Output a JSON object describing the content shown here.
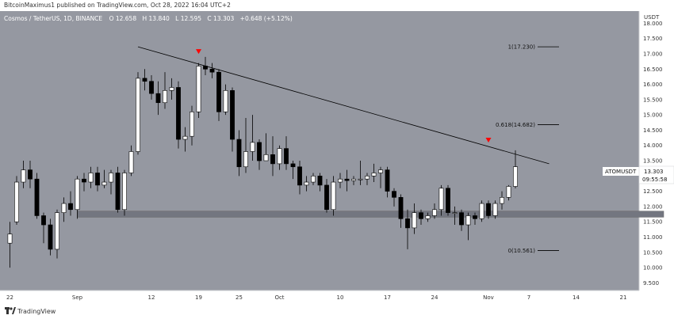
{
  "header": {
    "attribution": "BitcoinMaximus1 published on TradingView.com, Oct 28, 2022 16:04 UTC+2"
  },
  "footer": {
    "brand": "TradingView"
  },
  "chart_data": {
    "type": "candlestick",
    "title": "Cosmos / TetherUS, 1D, BINANCE",
    "legend": {
      "pair": "Cosmos / TetherUS, 1D, BINANCE",
      "ohlc": [
        {
          "label": "O",
          "value": "12.658"
        },
        {
          "label": "H",
          "value": "13.840"
        },
        {
          "label": "L",
          "value": "12.595"
        },
        {
          "label": "C",
          "value": "13.303"
        }
      ],
      "change": "+0.648 (+5.12%)"
    },
    "y_axis": {
      "unit": "USDT",
      "range": [
        9.25,
        18.4
      ],
      "ticks": [
        "9.500",
        "10.000",
        "10.500",
        "11.000",
        "11.500",
        "12.000",
        "12.500",
        "13.000",
        "13.500",
        "14.000",
        "14.500",
        "15.000",
        "15.500",
        "16.000",
        "16.500",
        "17.000",
        "17.500",
        "18.000"
      ]
    },
    "x_axis": {
      "ticks": [
        {
          "label": "22",
          "day": 0
        },
        {
          "label": "Sep",
          "day": 10
        },
        {
          "label": "12",
          "day": 21
        },
        {
          "label": "19",
          "day": 28
        },
        {
          "label": "25",
          "day": 34
        },
        {
          "label": "Oct",
          "day": 40
        },
        {
          "label": "10",
          "day": 49
        },
        {
          "label": "17",
          "day": 56
        },
        {
          "label": "24",
          "day": 63
        },
        {
          "label": "Nov",
          "day": 71
        },
        {
          "label": "7",
          "day": 77
        },
        {
          "label": "14",
          "day": 84
        },
        {
          "label": "21",
          "day": 91
        }
      ]
    },
    "candles": [
      [
        10.8,
        11.1,
        10.0,
        11.5
      ],
      [
        11.5,
        12.8,
        11.4,
        13.0
      ],
      [
        12.8,
        13.2,
        12.6,
        13.5
      ],
      [
        13.2,
        12.9,
        12.6,
        13.5
      ],
      [
        12.9,
        11.7,
        11.6,
        13.1
      ],
      [
        11.7,
        11.4,
        10.8,
        11.8
      ],
      [
        11.4,
        10.6,
        10.4,
        11.6
      ],
      [
        10.6,
        11.8,
        10.3,
        11.9
      ],
      [
        11.8,
        12.1,
        11.5,
        12.3
      ],
      [
        12.1,
        11.9,
        11.7,
        12.5
      ],
      [
        11.9,
        12.9,
        11.6,
        13.0
      ],
      [
        12.9,
        12.8,
        12.5,
        13.1
      ],
      [
        12.8,
        13.1,
        12.6,
        13.3
      ],
      [
        13.1,
        12.7,
        12.5,
        13.3
      ],
      [
        12.7,
        12.8,
        12.6,
        13.2
      ],
      [
        12.8,
        13.1,
        12.4,
        13.2
      ],
      [
        13.1,
        11.9,
        11.8,
        13.3
      ],
      [
        11.9,
        13.1,
        11.7,
        13.2
      ],
      [
        13.1,
        13.8,
        13.0,
        14.0
      ],
      [
        13.8,
        16.2,
        13.7,
        16.4
      ],
      [
        16.2,
        16.1,
        15.8,
        16.5
      ],
      [
        16.1,
        15.7,
        15.5,
        16.3
      ],
      [
        15.7,
        15.4,
        15.0,
        16.1
      ],
      [
        15.4,
        15.8,
        15.2,
        16.4
      ],
      [
        15.8,
        15.9,
        15.5,
        16.2
      ],
      [
        15.9,
        14.2,
        13.9,
        16.1
      ],
      [
        14.2,
        14.3,
        13.8,
        14.6
      ],
      [
        14.3,
        15.1,
        14.0,
        15.3
      ],
      [
        15.1,
        16.6,
        14.9,
        16.7
      ],
      [
        16.6,
        16.5,
        16.3,
        16.9
      ],
      [
        16.5,
        16.4,
        16.2,
        16.7
      ],
      [
        16.4,
        15.1,
        14.8,
        16.5
      ],
      [
        15.1,
        15.8,
        15.0,
        16.0
      ],
      [
        15.8,
        14.2,
        13.8,
        15.9
      ],
      [
        14.2,
        13.3,
        13.0,
        14.5
      ],
      [
        13.3,
        13.8,
        13.1,
        14.9
      ],
      [
        13.8,
        14.1,
        13.5,
        15.0
      ],
      [
        14.1,
        13.5,
        13.2,
        14.2
      ],
      [
        13.5,
        13.7,
        13.5,
        14.4
      ],
      [
        13.7,
        13.4,
        13.0,
        14.3
      ],
      [
        13.4,
        13.9,
        13.2,
        14.0
      ],
      [
        13.9,
        13.4,
        13.2,
        14.3
      ],
      [
        13.4,
        13.3,
        12.9,
        13.5
      ],
      [
        13.3,
        12.7,
        12.4,
        13.5
      ],
      [
        12.7,
        12.8,
        12.5,
        13.0
      ],
      [
        12.8,
        13.0,
        12.7,
        13.1
      ],
      [
        13.0,
        12.7,
        12.5,
        13.1
      ],
      [
        12.7,
        11.9,
        11.8,
        12.9
      ],
      [
        11.9,
        12.8,
        11.7,
        13.0
      ],
      [
        12.8,
        12.9,
        12.6,
        13.1
      ],
      [
        12.9,
        12.85,
        12.5,
        13.2
      ],
      [
        12.85,
        12.9,
        12.7,
        13.0
      ],
      [
        12.9,
        12.9,
        12.7,
        13.5
      ],
      [
        12.9,
        13.0,
        12.7,
        13.1
      ],
      [
        13.0,
        13.1,
        12.8,
        13.4
      ],
      [
        13.1,
        13.2,
        12.6,
        13.3
      ],
      [
        13.2,
        12.5,
        12.3,
        13.3
      ],
      [
        12.5,
        12.3,
        12.0,
        12.6
      ],
      [
        12.3,
        11.6,
        11.3,
        12.4
      ],
      [
        11.6,
        11.3,
        10.6,
        11.9
      ],
      [
        11.3,
        11.8,
        11.1,
        12.1
      ],
      [
        11.8,
        11.6,
        11.4,
        11.9
      ],
      [
        11.6,
        11.7,
        11.5,
        11.8
      ],
      [
        11.7,
        11.9,
        11.6,
        12.1
      ],
      [
        11.9,
        12.6,
        11.7,
        12.7
      ],
      [
        12.6,
        11.8,
        11.7,
        12.7
      ],
      [
        11.8,
        11.8,
        11.4,
        12.0
      ],
      [
        11.8,
        11.4,
        11.2,
        11.9
      ],
      [
        11.4,
        11.7,
        10.9,
        11.8
      ],
      [
        11.7,
        11.6,
        11.4,
        11.8
      ],
      [
        11.6,
        12.1,
        11.5,
        12.2
      ],
      [
        12.1,
        11.7,
        11.6,
        12.2
      ],
      [
        11.7,
        12.1,
        11.6,
        12.2
      ],
      [
        12.1,
        12.3,
        11.9,
        12.5
      ],
      [
        12.3,
        12.66,
        12.2,
        12.7
      ],
      [
        12.658,
        13.303,
        12.595,
        13.84
      ]
    ],
    "trendline": {
      "from": {
        "day": 19,
        "price": 17.23
      },
      "to": {
        "day": 80,
        "price": 13.4
      }
    },
    "support_zone": {
      "low": 11.65,
      "high": 11.85,
      "from_day": 10,
      "to_day": 97
    },
    "fib_levels": [
      {
        "label": "1(17.230)",
        "price": 17.23
      },
      {
        "label": "0.618(14.682)",
        "price": 14.682
      },
      {
        "label": "0(10.561)",
        "price": 10.561
      }
    ],
    "markers": [
      {
        "day": 28,
        "price": 17.05,
        "shape": "down-triangle",
        "color": "#ff0000"
      },
      {
        "day": 71,
        "price": 14.15,
        "shape": "down-triangle",
        "color": "#ff0000"
      }
    ],
    "price_label": {
      "symbol": "ATOMUSDT",
      "price": "13.303",
      "countdown": "09:55:58"
    },
    "colors": {
      "background": "#9598a1",
      "up": "#ffffff",
      "down": "#000000",
      "zone": "#737680",
      "axis_bg": "#ffffff",
      "marker": "#ff0000"
    }
  }
}
